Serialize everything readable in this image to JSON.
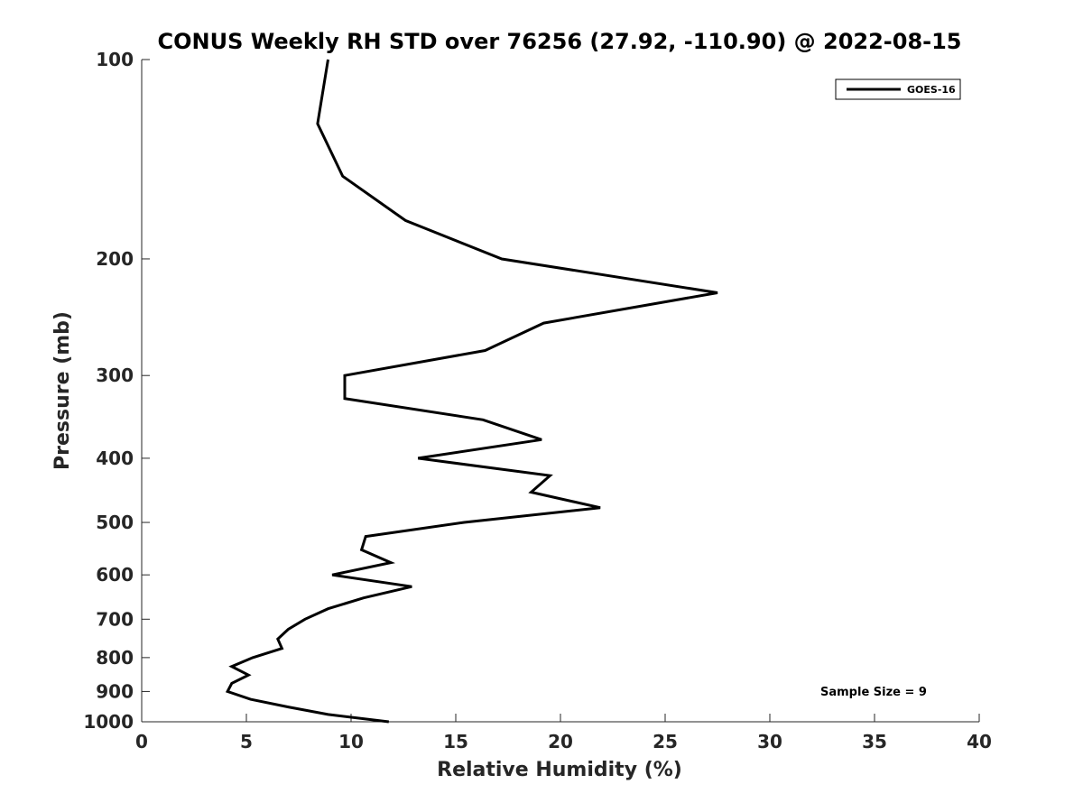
{
  "chart_data": {
    "type": "line",
    "title": "CONUS Weekly RH STD over 76256 (27.92, -110.90) @ 2022-08-15",
    "xlabel": "Relative Humidity (%)",
    "ylabel": "Pressure (mb)",
    "xlim": [
      0,
      40
    ],
    "ylim": [
      100,
      1000
    ],
    "y_scale": "log",
    "y_reversed": true,
    "x_ticks": [
      0,
      5,
      10,
      15,
      20,
      25,
      30,
      35,
      40
    ],
    "x_tick_labels": [
      "0",
      "5",
      "10",
      "15",
      "20",
      "25",
      "30",
      "35",
      "40"
    ],
    "y_ticks": [
      100,
      200,
      300,
      400,
      500,
      600,
      700,
      800,
      900,
      1000
    ],
    "y_tick_labels": [
      "100",
      "200",
      "300",
      "400",
      "500",
      "600",
      "700",
      "800",
      "900",
      "1000"
    ],
    "grid": false,
    "legend_position": "top-right",
    "series": [
      {
        "name": "GOES-16",
        "color": "#000000",
        "points": [
          {
            "x": 8.9,
            "p": 100
          },
          {
            "x": 8.4,
            "p": 125
          },
          {
            "x": 9.6,
            "p": 150
          },
          {
            "x": 12.6,
            "p": 175
          },
          {
            "x": 17.2,
            "p": 200
          },
          {
            "x": 27.5,
            "p": 225
          },
          {
            "x": 19.2,
            "p": 250
          },
          {
            "x": 16.4,
            "p": 275
          },
          {
            "x": 9.7,
            "p": 300
          },
          {
            "x": 9.7,
            "p": 325
          },
          {
            "x": 16.3,
            "p": 350
          },
          {
            "x": 19.1,
            "p": 375
          },
          {
            "x": 13.2,
            "p": 400
          },
          {
            "x": 19.5,
            "p": 425
          },
          {
            "x": 18.6,
            "p": 450
          },
          {
            "x": 21.9,
            "p": 475
          },
          {
            "x": 15.4,
            "p": 500
          },
          {
            "x": 10.7,
            "p": 525
          },
          {
            "x": 10.5,
            "p": 550
          },
          {
            "x": 11.9,
            "p": 575
          },
          {
            "x": 9.1,
            "p": 600
          },
          {
            "x": 12.9,
            "p": 625
          },
          {
            "x": 10.6,
            "p": 650
          },
          {
            "x": 8.9,
            "p": 675
          },
          {
            "x": 7.8,
            "p": 700
          },
          {
            "x": 7.0,
            "p": 725
          },
          {
            "x": 6.5,
            "p": 750
          },
          {
            "x": 6.7,
            "p": 775
          },
          {
            "x": 5.3,
            "p": 800
          },
          {
            "x": 4.3,
            "p": 825
          },
          {
            "x": 5.1,
            "p": 850
          },
          {
            "x": 4.3,
            "p": 875
          },
          {
            "x": 4.1,
            "p": 900
          },
          {
            "x": 5.2,
            "p": 925
          },
          {
            "x": 7.0,
            "p": 950
          },
          {
            "x": 8.9,
            "p": 975
          },
          {
            "x": 11.8,
            "p": 1000
          }
        ]
      }
    ],
    "annotation": "Sample Size = 9"
  }
}
